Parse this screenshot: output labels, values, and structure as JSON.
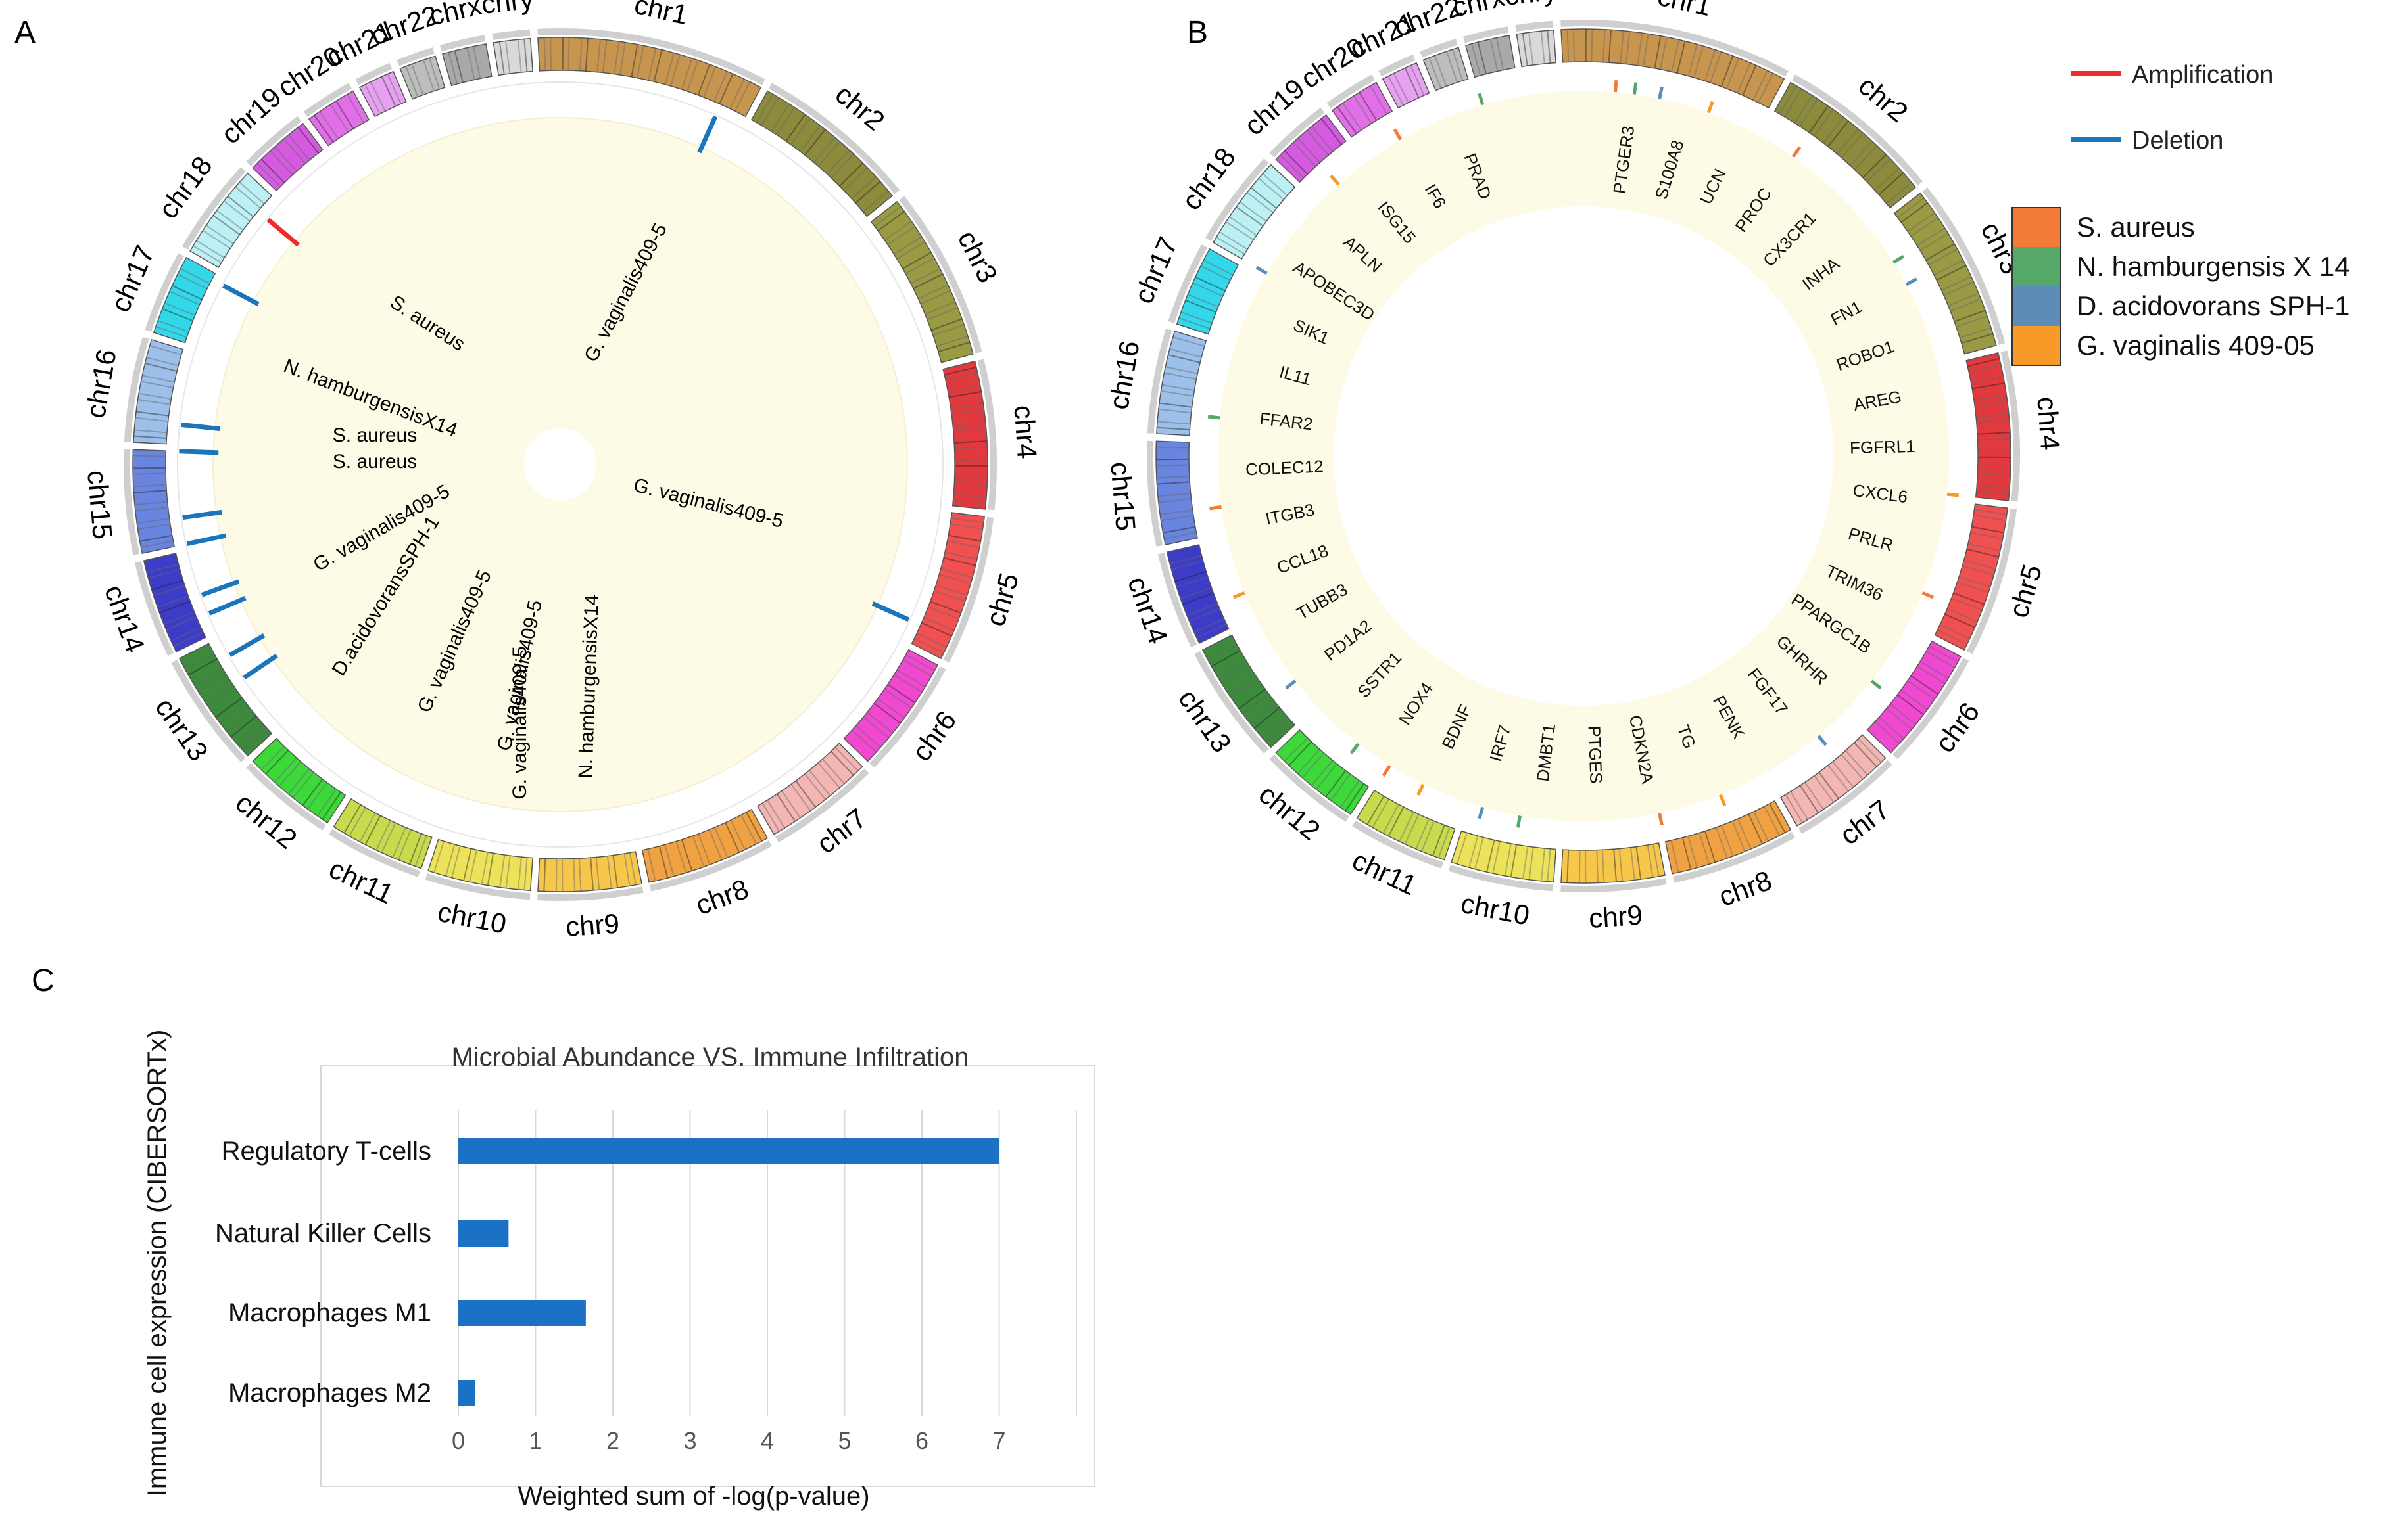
{
  "panels": {
    "a": {
      "label": "A",
      "chromosomes": [
        "chr1",
        "chr2",
        "chr3",
        "chr4",
        "chr5",
        "chr6",
        "chr7",
        "chr8",
        "chr9",
        "chr10",
        "chr11",
        "chr12",
        "chr13",
        "chr14",
        "chr15",
        "chr16",
        "chr17",
        "chr18",
        "chr19",
        "chr20",
        "chr21",
        "chr22",
        "chrx",
        "chry"
      ],
      "chromosome_colors": [
        "#c8954f",
        "#8c8a3b",
        "#9a9a45",
        "#e2393f",
        "#f05050",
        "#f048d0",
        "#f3b6b2",
        "#f0a242",
        "#f7c74c",
        "#ece35a",
        "#c9db4d",
        "#3dd93b",
        "#3c8a3c",
        "#3c3cc9",
        "#6a85e0",
        "#9cc0ea",
        "#33d7ea",
        "#bcf0f4",
        "#d45adf",
        "#e26fe8",
        "#e6a2f0",
        "#bdbdbd",
        "#a9a9a9",
        "#d9d9d9"
      ],
      "links": [
        "S. aureus",
        "N. hamburgensisX14",
        "S. aureus",
        "S. aureus",
        "G. vaginalis409-5",
        "D.acidovoransSPH-1",
        "G. vaginalis409-5",
        "G. vaginalis409-5",
        "G. vaginalis409-5",
        "N. hamburgensisX14",
        "G. vaginalis409-5",
        "G. vaginalis409-5"
      ],
      "cnv_marks": [
        "Amplification",
        "Deletion",
        "Deletion",
        "Deletion",
        "Deletion",
        "Deletion",
        "Deletion",
        "Deletion",
        "Deletion",
        "Deletion",
        "Deletion",
        "Deletion"
      ]
    },
    "b": {
      "label": "B",
      "chromosomes": [
        "chr1",
        "chr2",
        "chr3",
        "chr4",
        "chr5",
        "chr6",
        "chr7",
        "chr8",
        "chr9",
        "chr10",
        "chr11",
        "chr12",
        "chr13",
        "chr14",
        "chr15",
        "chr16",
        "chr17",
        "chr18",
        "chr19",
        "chr20",
        "chr21",
        "chr22",
        "chrx",
        "chry"
      ],
      "genes": [
        "PTGER3",
        "S100A8",
        "UCN",
        "PROC",
        "CX3CR1",
        "INHA",
        "FN1",
        "ROBO1",
        "AREG",
        "FGFRL1",
        "CXCL6",
        "PRLR",
        "TRIM36",
        "PPARGC1B",
        "GHRHR",
        "FGF17",
        "PENK",
        "TG",
        "CDKN2A",
        "PTGES",
        "DMBT1",
        "IRF7",
        "BDNF",
        "NOX4",
        "SSTR1",
        "PD1A2",
        "TUBB3",
        "CCL18",
        "ITGB3",
        "COLEC12",
        "FFAR2",
        "IL11",
        "SIK1",
        "APOBEC3D",
        "APLN",
        "ISG15",
        "IF6",
        "PRAD"
      ],
      "legend": {
        "cnv": [
          {
            "label": "Amplification",
            "color": "#ee2b2b"
          },
          {
            "label": "Deletion",
            "color": "#1b75bb"
          }
        ],
        "species": [
          {
            "label": "S. aureus",
            "color": "#f47a3a"
          },
          {
            "label": "N. hamburgensis X 14",
            "color": "#55a868"
          },
          {
            "label": "D. acidovorans SPH-1",
            "color": "#5b8db8"
          },
          {
            "label": "G. vaginalis 409-05",
            "color": "#f79a28"
          }
        ]
      }
    },
    "c": {
      "label": "C"
    }
  },
  "chart_data": [
    {
      "type": "bar",
      "orientation": "horizontal",
      "title": "Microbial Abundance VS. Immune Infiltration",
      "xlabel": "Weighted sum of -log(p-value)",
      "ylabel": "Immune cell expression (CIBERSORTx)",
      "categories": [
        "Regulatory T-cells",
        "Natural Killer Cells",
        "Macrophages M1",
        "Macrophages M2"
      ],
      "values": [
        7.0,
        0.65,
        1.65,
        0.22
      ],
      "xlim": [
        0,
        8
      ],
      "xticks": [
        "0",
        "1",
        "2",
        "3",
        "4",
        "5",
        "6",
        "7"
      ],
      "grid": "vertical",
      "color": "#1b72c4"
    }
  ]
}
